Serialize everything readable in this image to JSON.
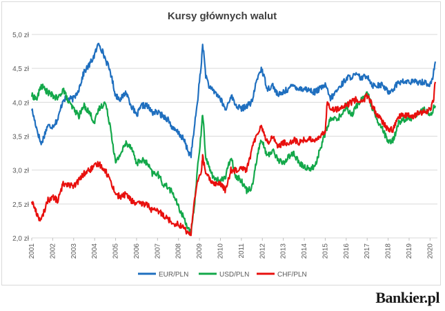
{
  "brand": "Bankier.pl",
  "chart_data": {
    "type": "line",
    "title": "Kursy głównych walut",
    "xlabel": "",
    "ylabel": "",
    "xlim": [
      2001,
      2020.35
    ],
    "ylim": [
      2.0,
      5.0
    ],
    "y_ticks": [
      "2,0 zł",
      "2,5 zł",
      "3,0 zł",
      "3,5 zł",
      "4,0 zł",
      "4,5 zł",
      "5,0 zł"
    ],
    "x_ticks": [
      "2001",
      "2002",
      "2003",
      "2004",
      "2005",
      "2006",
      "2007",
      "2008",
      "2009",
      "2010",
      "2011",
      "2012",
      "2013",
      "2014",
      "2015",
      "2016",
      "2017",
      "2018",
      "2019",
      "2020"
    ],
    "grid": "horizontal",
    "legend_position": "bottom",
    "series": [
      {
        "name": "EUR/PLN",
        "color": "#1f6fbf",
        "points": [
          [
            2001.0,
            3.9
          ],
          [
            2001.25,
            3.6
          ],
          [
            2001.45,
            3.38
          ],
          [
            2001.75,
            3.65
          ],
          [
            2002.0,
            3.65
          ],
          [
            2002.25,
            3.75
          ],
          [
            2002.5,
            4.05
          ],
          [
            2002.75,
            4.05
          ],
          [
            2003.0,
            4.05
          ],
          [
            2003.25,
            4.2
          ],
          [
            2003.5,
            4.45
          ],
          [
            2003.75,
            4.55
          ],
          [
            2004.0,
            4.7
          ],
          [
            2004.2,
            4.88
          ],
          [
            2004.5,
            4.65
          ],
          [
            2004.75,
            4.45
          ],
          [
            2005.0,
            4.1
          ],
          [
            2005.25,
            4.05
          ],
          [
            2005.5,
            4.15
          ],
          [
            2005.75,
            3.95
          ],
          [
            2006.0,
            3.8
          ],
          [
            2006.25,
            3.95
          ],
          [
            2006.5,
            3.95
          ],
          [
            2006.75,
            3.85
          ],
          [
            2007.0,
            3.85
          ],
          [
            2007.25,
            3.8
          ],
          [
            2007.5,
            3.75
          ],
          [
            2007.75,
            3.6
          ],
          [
            2008.0,
            3.55
          ],
          [
            2008.25,
            3.45
          ],
          [
            2008.5,
            3.25
          ],
          [
            2008.6,
            3.23
          ],
          [
            2008.75,
            3.6
          ],
          [
            2008.9,
            4.0
          ],
          [
            2009.1,
            4.6
          ],
          [
            2009.15,
            4.88
          ],
          [
            2009.3,
            4.4
          ],
          [
            2009.5,
            4.2
          ],
          [
            2009.75,
            4.15
          ],
          [
            2010.0,
            4.05
          ],
          [
            2010.25,
            3.88
          ],
          [
            2010.5,
            4.1
          ],
          [
            2010.75,
            3.95
          ],
          [
            2011.0,
            3.9
          ],
          [
            2011.25,
            3.95
          ],
          [
            2011.5,
            4.0
          ],
          [
            2011.75,
            4.35
          ],
          [
            2011.95,
            4.5
          ],
          [
            2012.25,
            4.2
          ],
          [
            2012.5,
            4.25
          ],
          [
            2012.75,
            4.1
          ],
          [
            2013.0,
            4.15
          ],
          [
            2013.25,
            4.2
          ],
          [
            2013.5,
            4.25
          ],
          [
            2013.75,
            4.2
          ],
          [
            2014.0,
            4.2
          ],
          [
            2014.25,
            4.18
          ],
          [
            2014.5,
            4.15
          ],
          [
            2014.75,
            4.2
          ],
          [
            2015.0,
            4.25
          ],
          [
            2015.25,
            4.05
          ],
          [
            2015.5,
            4.15
          ],
          [
            2015.75,
            4.25
          ],
          [
            2016.0,
            4.35
          ],
          [
            2016.25,
            4.38
          ],
          [
            2016.5,
            4.4
          ],
          [
            2016.75,
            4.35
          ],
          [
            2017.0,
            4.4
          ],
          [
            2017.25,
            4.25
          ],
          [
            2017.5,
            4.25
          ],
          [
            2017.75,
            4.25
          ],
          [
            2018.0,
            4.15
          ],
          [
            2018.25,
            4.2
          ],
          [
            2018.5,
            4.3
          ],
          [
            2018.75,
            4.3
          ],
          [
            2019.0,
            4.3
          ],
          [
            2019.25,
            4.3
          ],
          [
            2019.5,
            4.3
          ],
          [
            2019.75,
            4.3
          ],
          [
            2020.0,
            4.25
          ],
          [
            2020.15,
            4.4
          ],
          [
            2020.25,
            4.6
          ]
        ]
      },
      {
        "name": "USD/PLN",
        "color": "#13a84a",
        "points": [
          [
            2001.0,
            4.1
          ],
          [
            2001.25,
            4.05
          ],
          [
            2001.45,
            4.25
          ],
          [
            2001.75,
            4.15
          ],
          [
            2002.0,
            4.1
          ],
          [
            2002.25,
            4.05
          ],
          [
            2002.5,
            4.2
          ],
          [
            2002.75,
            4.0
          ],
          [
            2003.0,
            3.9
          ],
          [
            2003.25,
            3.8
          ],
          [
            2003.5,
            3.95
          ],
          [
            2003.75,
            3.85
          ],
          [
            2004.0,
            3.7
          ],
          [
            2004.2,
            3.9
          ],
          [
            2004.5,
            4.0
          ],
          [
            2004.75,
            3.65
          ],
          [
            2005.0,
            3.1
          ],
          [
            2005.25,
            3.25
          ],
          [
            2005.5,
            3.4
          ],
          [
            2005.75,
            3.35
          ],
          [
            2006.0,
            3.1
          ],
          [
            2006.25,
            3.15
          ],
          [
            2006.5,
            3.1
          ],
          [
            2006.75,
            2.95
          ],
          [
            2007.0,
            2.95
          ],
          [
            2007.25,
            2.8
          ],
          [
            2007.5,
            2.75
          ],
          [
            2007.75,
            2.65
          ],
          [
            2008.0,
            2.45
          ],
          [
            2008.25,
            2.3
          ],
          [
            2008.5,
            2.12
          ],
          [
            2008.6,
            2.05
          ],
          [
            2008.75,
            2.45
          ],
          [
            2008.9,
            3.0
          ],
          [
            2009.1,
            3.6
          ],
          [
            2009.15,
            3.85
          ],
          [
            2009.3,
            3.2
          ],
          [
            2009.5,
            3.0
          ],
          [
            2009.75,
            2.85
          ],
          [
            2010.0,
            2.85
          ],
          [
            2010.25,
            2.9
          ],
          [
            2010.5,
            3.2
          ],
          [
            2010.75,
            2.9
          ],
          [
            2011.0,
            2.85
          ],
          [
            2011.25,
            2.7
          ],
          [
            2011.5,
            2.75
          ],
          [
            2011.75,
            3.2
          ],
          [
            2011.95,
            3.45
          ],
          [
            2012.25,
            3.2
          ],
          [
            2012.5,
            3.3
          ],
          [
            2012.75,
            3.15
          ],
          [
            2013.0,
            3.1
          ],
          [
            2013.25,
            3.2
          ],
          [
            2013.5,
            3.25
          ],
          [
            2013.75,
            3.1
          ],
          [
            2014.0,
            3.05
          ],
          [
            2014.25,
            3.02
          ],
          [
            2014.5,
            3.05
          ],
          [
            2014.75,
            3.3
          ],
          [
            2015.0,
            3.55
          ],
          [
            2015.25,
            3.75
          ],
          [
            2015.5,
            3.75
          ],
          [
            2015.75,
            3.8
          ],
          [
            2016.0,
            3.95
          ],
          [
            2016.25,
            3.8
          ],
          [
            2016.5,
            3.95
          ],
          [
            2016.75,
            4.05
          ],
          [
            2017.0,
            4.15
          ],
          [
            2017.25,
            3.9
          ],
          [
            2017.5,
            3.7
          ],
          [
            2017.75,
            3.6
          ],
          [
            2018.0,
            3.4
          ],
          [
            2018.25,
            3.45
          ],
          [
            2018.5,
            3.7
          ],
          [
            2018.75,
            3.75
          ],
          [
            2019.0,
            3.75
          ],
          [
            2019.25,
            3.8
          ],
          [
            2019.5,
            3.85
          ],
          [
            2019.75,
            3.9
          ],
          [
            2020.0,
            3.8
          ],
          [
            2020.15,
            3.9
          ],
          [
            2020.25,
            3.95
          ]
        ]
      },
      {
        "name": "CHF/PLN",
        "color": "#e8100e",
        "points": [
          [
            2001.0,
            2.55
          ],
          [
            2001.25,
            2.35
          ],
          [
            2001.45,
            2.25
          ],
          [
            2001.75,
            2.55
          ],
          [
            2002.0,
            2.6
          ],
          [
            2002.25,
            2.55
          ],
          [
            2002.5,
            2.8
          ],
          [
            2002.75,
            2.8
          ],
          [
            2003.0,
            2.75
          ],
          [
            2003.25,
            2.85
          ],
          [
            2003.5,
            2.95
          ],
          [
            2003.75,
            3.0
          ],
          [
            2004.0,
            3.05
          ],
          [
            2004.2,
            3.1
          ],
          [
            2004.5,
            3.0
          ],
          [
            2004.75,
            2.85
          ],
          [
            2005.0,
            2.65
          ],
          [
            2005.25,
            2.6
          ],
          [
            2005.5,
            2.65
          ],
          [
            2005.75,
            2.55
          ],
          [
            2006.0,
            2.5
          ],
          [
            2006.25,
            2.5
          ],
          [
            2006.5,
            2.5
          ],
          [
            2006.75,
            2.4
          ],
          [
            2007.0,
            2.4
          ],
          [
            2007.25,
            2.35
          ],
          [
            2007.5,
            2.28
          ],
          [
            2007.75,
            2.22
          ],
          [
            2008.0,
            2.2
          ],
          [
            2008.25,
            2.15
          ],
          [
            2008.5,
            2.05
          ],
          [
            2008.6,
            2.08
          ],
          [
            2008.75,
            2.55
          ],
          [
            2008.9,
            2.8
          ],
          [
            2009.1,
            3.0
          ],
          [
            2009.15,
            3.2
          ],
          [
            2009.3,
            2.95
          ],
          [
            2009.5,
            2.85
          ],
          [
            2009.75,
            2.8
          ],
          [
            2010.0,
            2.8
          ],
          [
            2010.25,
            2.7
          ],
          [
            2010.5,
            3.0
          ],
          [
            2010.75,
            3.0
          ],
          [
            2011.0,
            3.05
          ],
          [
            2011.25,
            3.0
          ],
          [
            2011.5,
            3.3
          ],
          [
            2011.75,
            3.55
          ],
          [
            2011.95,
            3.65
          ],
          [
            2012.25,
            3.4
          ],
          [
            2012.5,
            3.5
          ],
          [
            2012.75,
            3.35
          ],
          [
            2013.0,
            3.4
          ],
          [
            2013.25,
            3.4
          ],
          [
            2013.5,
            3.45
          ],
          [
            2013.75,
            3.4
          ],
          [
            2014.0,
            3.45
          ],
          [
            2014.25,
            3.45
          ],
          [
            2014.5,
            3.45
          ],
          [
            2014.75,
            3.5
          ],
          [
            2015.0,
            3.55
          ],
          [
            2015.1,
            4.05
          ],
          [
            2015.25,
            3.9
          ],
          [
            2015.5,
            3.9
          ],
          [
            2015.75,
            3.9
          ],
          [
            2016.0,
            3.95
          ],
          [
            2016.25,
            4.0
          ],
          [
            2016.5,
            4.05
          ],
          [
            2016.75,
            4.0
          ],
          [
            2017.0,
            4.1
          ],
          [
            2017.25,
            3.95
          ],
          [
            2017.5,
            3.8
          ],
          [
            2017.75,
            3.7
          ],
          [
            2018.0,
            3.6
          ],
          [
            2018.25,
            3.6
          ],
          [
            2018.5,
            3.8
          ],
          [
            2018.75,
            3.8
          ],
          [
            2019.0,
            3.8
          ],
          [
            2019.25,
            3.8
          ],
          [
            2019.5,
            3.85
          ],
          [
            2019.75,
            3.85
          ],
          [
            2020.0,
            3.9
          ],
          [
            2020.15,
            4.0
          ],
          [
            2020.25,
            4.3
          ]
        ]
      }
    ]
  }
}
